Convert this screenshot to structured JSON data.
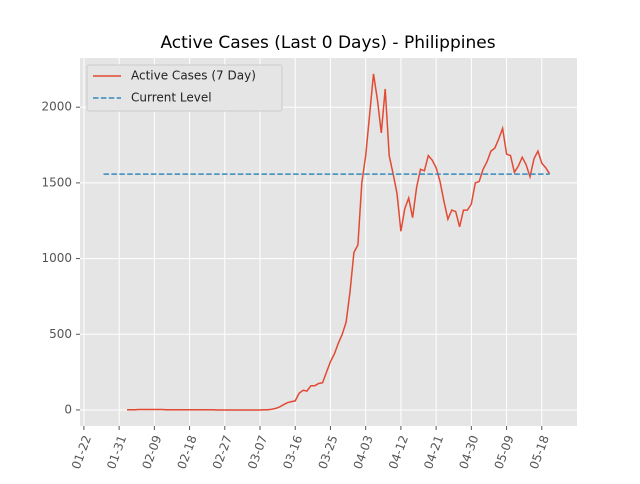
{
  "chart_data": {
    "type": "line",
    "title": "Active Cases (Last 0 Days) - Philippines",
    "series": [
      {
        "name": "Active Cases (7 Day)",
        "color": "#E24A33",
        "dash": false,
        "x": [
          "02-02",
          "02-03",
          "02-04",
          "02-05",
          "02-06",
          "02-07",
          "02-08",
          "02-09",
          "02-10",
          "02-11",
          "02-12",
          "02-13",
          "02-14",
          "02-15",
          "02-16",
          "02-17",
          "02-18",
          "02-19",
          "02-20",
          "02-21",
          "02-22",
          "02-23",
          "02-24",
          "02-25",
          "02-26",
          "02-27",
          "02-28",
          "02-29",
          "03-01",
          "03-02",
          "03-03",
          "03-04",
          "03-05",
          "03-06",
          "03-07",
          "03-08",
          "03-09",
          "03-10",
          "03-11",
          "03-12",
          "03-13",
          "03-14",
          "03-15",
          "03-16",
          "03-17",
          "03-18",
          "03-19",
          "03-20",
          "03-21",
          "03-22",
          "03-23",
          "03-24",
          "03-25",
          "03-26",
          "03-27",
          "03-28",
          "03-29",
          "03-30",
          "03-31",
          "04-01",
          "04-02",
          "04-03",
          "04-04",
          "04-05",
          "04-06",
          "04-07",
          "04-08",
          "04-09",
          "04-10",
          "04-11",
          "04-12",
          "04-13",
          "04-14",
          "04-15",
          "04-16",
          "04-17",
          "04-18",
          "04-19",
          "04-20",
          "04-21",
          "04-22",
          "04-23",
          "04-24",
          "04-25",
          "04-26",
          "04-27",
          "04-28",
          "04-29",
          "04-30",
          "05-01",
          "05-02",
          "05-03",
          "05-04",
          "05-05",
          "05-06",
          "05-07",
          "05-08",
          "05-09",
          "05-10",
          "05-11",
          "05-12",
          "05-13",
          "05-14",
          "05-15",
          "05-16",
          "05-17",
          "05-18",
          "05-19",
          "05-20"
        ],
        "values": [
          1,
          2,
          2,
          3,
          3,
          3,
          3,
          3,
          3,
          3,
          2,
          2,
          2,
          2,
          2,
          1,
          1,
          1,
          1,
          1,
          1,
          1,
          1,
          0,
          0,
          0,
          0,
          0,
          0,
          0,
          0,
          0,
          0,
          0,
          0,
          1,
          2,
          5,
          10,
          20,
          35,
          48,
          55,
          60,
          110,
          130,
          125,
          160,
          160,
          175,
          180,
          250,
          320,
          370,
          440,
          500,
          580,
          780,
          1040,
          1090,
          1500,
          1680,
          1950,
          2220,
          2050,
          1830,
          2120,
          1680,
          1560,
          1430,
          1180,
          1330,
          1400,
          1270,
          1470,
          1590,
          1580,
          1680,
          1650,
          1600,
          1510,
          1380,
          1260,
          1320,
          1310,
          1210,
          1320,
          1320,
          1360,
          1500,
          1510,
          1590,
          1640,
          1710,
          1730,
          1790,
          1860,
          1690,
          1680,
          1570,
          1610,
          1670,
          1620,
          1540,
          1660,
          1710,
          1630,
          1600,
          1560
        ]
      },
      {
        "name": "Current Level",
        "color": "#348ABD",
        "dash": true,
        "x": [
          "01-27",
          "05-20"
        ],
        "values": [
          1558,
          1558
        ]
      }
    ],
    "xlim": [
      "01-21",
      "05-27"
    ],
    "xticks": [
      "01-22",
      "01-31",
      "02-09",
      "02-18",
      "02-27",
      "03-07",
      "03-16",
      "03-25",
      "04-03",
      "04-12",
      "04-21",
      "04-30",
      "05-09",
      "05-18"
    ],
    "ylim": [
      -106,
      2325
    ],
    "yticks": [
      0,
      500,
      1000,
      1500,
      2000
    ],
    "grid": true,
    "legend": "upper-left"
  }
}
